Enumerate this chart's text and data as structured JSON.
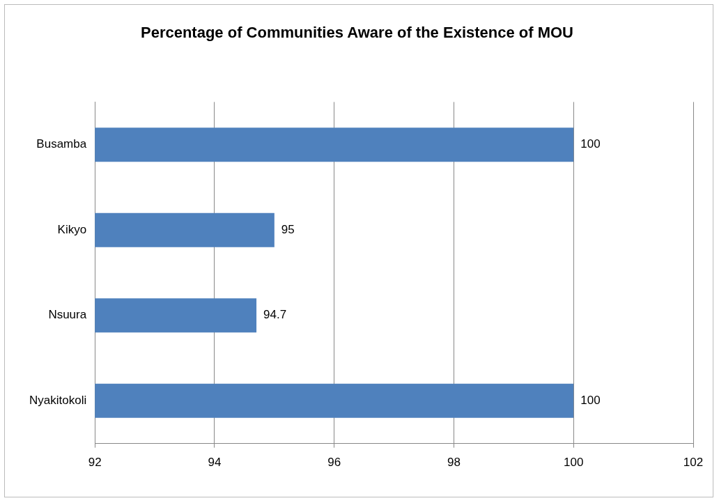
{
  "chart_data": {
    "type": "bar",
    "orientation": "horizontal",
    "title": "Percentage of Communities Aware of the Existence of MOU",
    "categories": [
      "Busamba",
      "Kikyo",
      "Nsuura",
      "Nyakitokoli"
    ],
    "values": [
      100,
      95,
      94.7,
      100
    ],
    "color": "#4f81bd",
    "xlim": [
      92,
      102
    ],
    "xticks": [
      92,
      94,
      96,
      98,
      100,
      102
    ],
    "grid": "x",
    "data_labels": true
  }
}
